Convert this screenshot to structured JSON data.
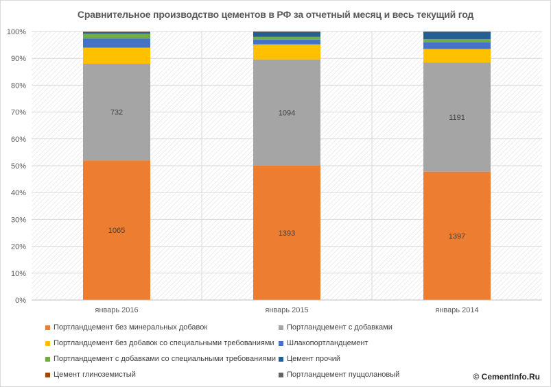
{
  "chart_data": {
    "type": "bar",
    "stacked": "percent",
    "title": "Сравнительное производство цементов в РФ за отчетный месяц и весь текущий год",
    "categories": [
      "январь 2016",
      "январь 2015",
      "январь 2014"
    ],
    "y_ticks": [
      "0%",
      "10%",
      "20%",
      "30%",
      "40%",
      "50%",
      "60%",
      "70%",
      "80%",
      "90%",
      "100%"
    ],
    "ylim": [
      0,
      100
    ],
    "grid": true,
    "legend_position": "bottom",
    "series": [
      {
        "name": "Портландцемент без минеральных добавок",
        "color": "#ed7d31",
        "share": [
          52.0,
          50.0,
          47.8
        ],
        "labels": [
          "1065",
          "1393",
          "1397"
        ]
      },
      {
        "name": "Портландцемент с добавками",
        "color": "#a5a5a5",
        "share": [
          36.0,
          39.6,
          40.6
        ],
        "labels": [
          "732",
          "1094",
          "1191"
        ]
      },
      {
        "name": "Портландцемент без добавок со специальными требованиями",
        "color": "#ffc000",
        "share": [
          6.0,
          5.6,
          5.1
        ],
        "labels": [
          "",
          "",
          ""
        ]
      },
      {
        "name": "Шлакопортландцемент",
        "color": "#4472c4",
        "share": [
          3.4,
          1.8,
          2.5
        ],
        "labels": [
          "",
          "",
          ""
        ]
      },
      {
        "name": "Портландцемент с добавками со специальными требованиями",
        "color": "#70ad47",
        "share": [
          1.8,
          1.0,
          1.2
        ],
        "labels": [
          "",
          "",
          ""
        ]
      },
      {
        "name": "Цемент прочий",
        "color": "#255e91",
        "share": [
          0.6,
          1.9,
          2.7
        ],
        "labels": [
          "",
          "",
          ""
        ]
      },
      {
        "name": "Цемент глиноземистый",
        "color": "#9e480e",
        "share": [
          0.1,
          0.1,
          0.05
        ],
        "labels": [
          "",
          "",
          ""
        ]
      },
      {
        "name": "Портландцемент пуццолановый",
        "color": "#636363",
        "share": [
          0.1,
          0.0,
          0.05
        ],
        "labels": [
          "",
          "",
          ""
        ]
      }
    ]
  },
  "footer": {
    "copyright": "© CementInfo.Ru"
  }
}
